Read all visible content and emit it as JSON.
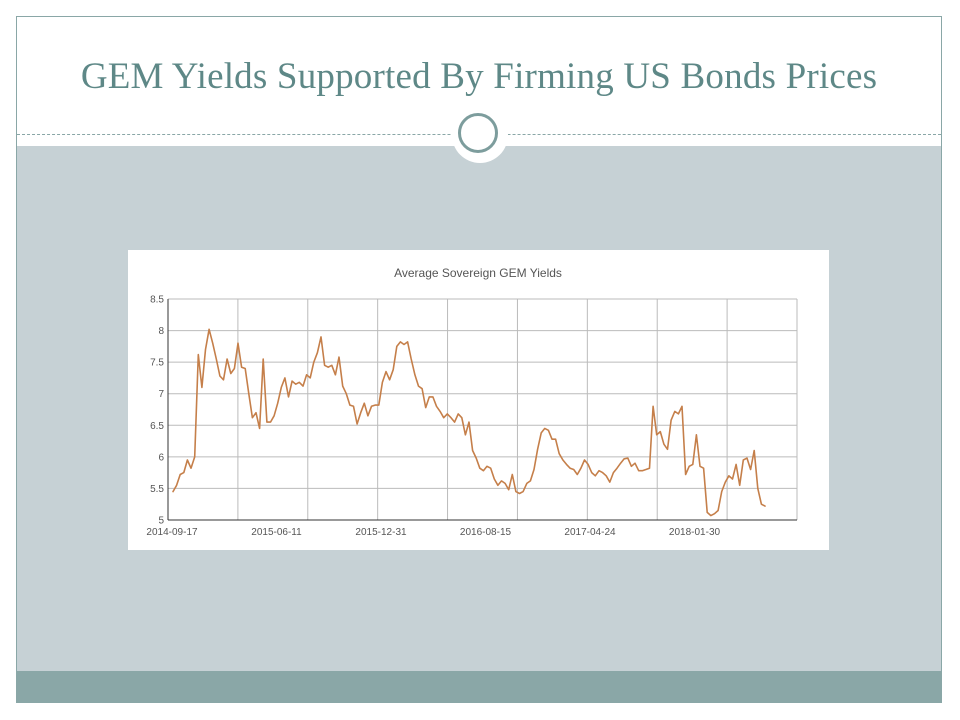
{
  "slide": {
    "title": "GEM Yields Supported By Firming US Bonds Prices"
  },
  "colors": {
    "title": "#5e8887",
    "frame": "#8aa7a7",
    "panel": "#c6d1d5",
    "series_line": "#c57f4a",
    "grid": "#bbbbbb"
  },
  "chart_data": {
    "type": "line",
    "title": "Average Sovereign GEM Yields",
    "xlabel": "",
    "ylabel": "",
    "grid": true,
    "legend": "none",
    "ylim": [
      5,
      8.5
    ],
    "y_ticks": [
      "5",
      "5.5",
      "6",
      "6.5",
      "7",
      "7.5",
      "8",
      "8.5"
    ],
    "x_ticks": [
      "2014-09-17",
      "2015-06-11",
      "2015-12-31",
      "2016-08-15",
      "2017-04-24",
      "2018-01-30"
    ],
    "series": [
      {
        "values": [
          5.45,
          5.55,
          5.72,
          5.75,
          5.95,
          5.82,
          6.0,
          7.62,
          7.1,
          7.7,
          8.02,
          7.8,
          7.55,
          7.28,
          7.22,
          7.55,
          7.32,
          7.4,
          7.8,
          7.42,
          7.4,
          7.0,
          6.62,
          6.7,
          6.45,
          7.55,
          6.55,
          6.55,
          6.65,
          6.85,
          7.1,
          7.25,
          6.95,
          7.2,
          7.15,
          7.18,
          7.12,
          7.3,
          7.25,
          7.5,
          7.65,
          7.9,
          7.45,
          7.42,
          7.45,
          7.3,
          7.58,
          7.12,
          7.0,
          6.82,
          6.8,
          6.52,
          6.7,
          6.85,
          6.65,
          6.8,
          6.82,
          6.82,
          7.18,
          7.35,
          7.22,
          7.38,
          7.75,
          7.82,
          7.78,
          7.82,
          7.55,
          7.3,
          7.12,
          7.08,
          6.78,
          6.95,
          6.95,
          6.8,
          6.72,
          6.62,
          6.68,
          6.62,
          6.55,
          6.68,
          6.62,
          6.35,
          6.55,
          6.1,
          5.98,
          5.82,
          5.78,
          5.85,
          5.82,
          5.65,
          5.55,
          5.62,
          5.58,
          5.48,
          5.72,
          5.45,
          5.42,
          5.45,
          5.58,
          5.62,
          5.8,
          6.12,
          6.38,
          6.45,
          6.42,
          6.28,
          6.28,
          6.05,
          5.95,
          5.88,
          5.82,
          5.8,
          5.72,
          5.82,
          5.95,
          5.88,
          5.75,
          5.7,
          5.78,
          5.75,
          5.7,
          5.6,
          5.75,
          5.82,
          5.9,
          5.97,
          5.98,
          5.85,
          5.9,
          5.78,
          5.78,
          5.8,
          5.82,
          6.8,
          6.35,
          6.4,
          6.2,
          6.12,
          6.58,
          6.72,
          6.68,
          6.8,
          5.72,
          5.85,
          5.88,
          6.35,
          5.85,
          5.82,
          5.12,
          5.07,
          5.1,
          5.15,
          5.45,
          5.6,
          5.7,
          5.65,
          5.88,
          5.55,
          5.95,
          5.98,
          5.8,
          6.1,
          5.5,
          5.25,
          5.22
        ]
      }
    ]
  }
}
